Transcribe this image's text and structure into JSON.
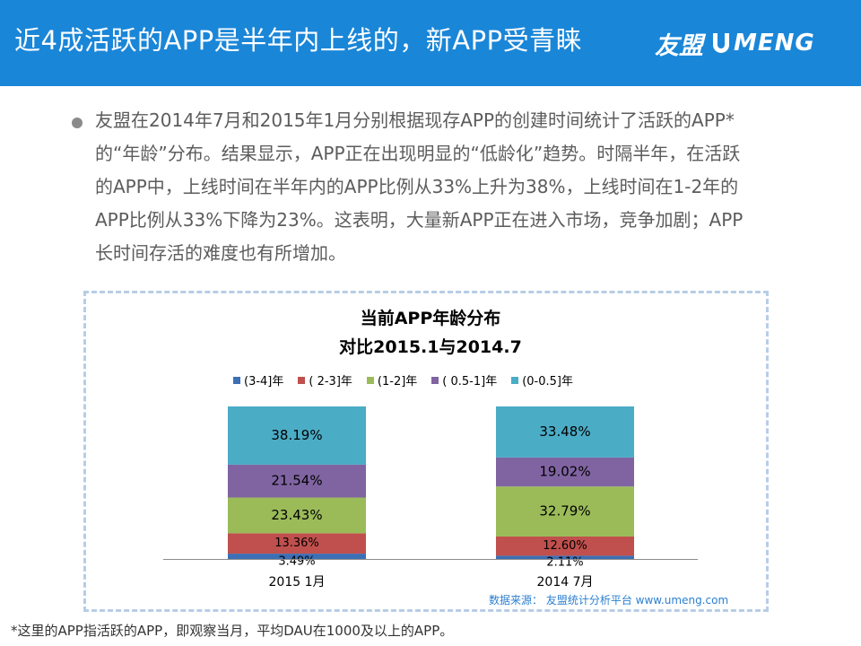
{
  "header": {
    "title": "近4成活跃的APP是半年内上线的，新APP受青睐",
    "brand_cn": "友盟",
    "brand_en": "MENG"
  },
  "body": {
    "paragraph": "友盟在2014年7月和2015年1月分别根据现存APP的创建时间统计了活跃的APP* 的“年龄”分布。结果显示，APP正在出现明显的“低龄化”趋势。时隔半年，在活跃的APP中，上线时间在半年内的APP比例从33%上升为38%，上线时间在1-2年的APP比例从33%下降为23%。这表明，大量新APP正在进入市场，竞争加剧；APP长时间存活的难度也有所增加。"
  },
  "chart_data": {
    "type": "bar",
    "stacked": true,
    "normalized": true,
    "title": "当前APP年龄分布",
    "subtitle": "对比2015.1与2014.7",
    "categories": [
      "2015 1月",
      "2014 7月"
    ],
    "series": [
      {
        "name": "(3-4]年",
        "color": "#3c6fb5",
        "values": [
          3.49,
          2.11
        ],
        "labels": [
          "3.49%",
          "2.11%"
        ]
      },
      {
        "name": "( 2-3]年",
        "color": "#c0504d",
        "values": [
          13.36,
          12.6
        ],
        "labels": [
          "13.36%",
          "12.60%"
        ]
      },
      {
        "name": "(1-2]年",
        "color": "#9bbb59",
        "values": [
          23.43,
          32.79
        ],
        "labels": [
          "23.43%",
          "32.79%"
        ]
      },
      {
        "name": "( 0.5-1]年",
        "color": "#8064a2",
        "values": [
          21.54,
          19.02
        ],
        "labels": [
          "21.54%",
          "19.02%"
        ]
      },
      {
        "name": "(0-0.5]年",
        "color": "#4bacc6",
        "values": [
          38.19,
          33.48
        ],
        "labels": [
          "38.19%",
          "33.48%"
        ]
      }
    ],
    "source": "数据来源： 友盟统计分析平台 www.umeng.com"
  },
  "footnote": "*这里的APP指活跃的APP，即观察当月，平均DAU在1000及以上的APP。"
}
